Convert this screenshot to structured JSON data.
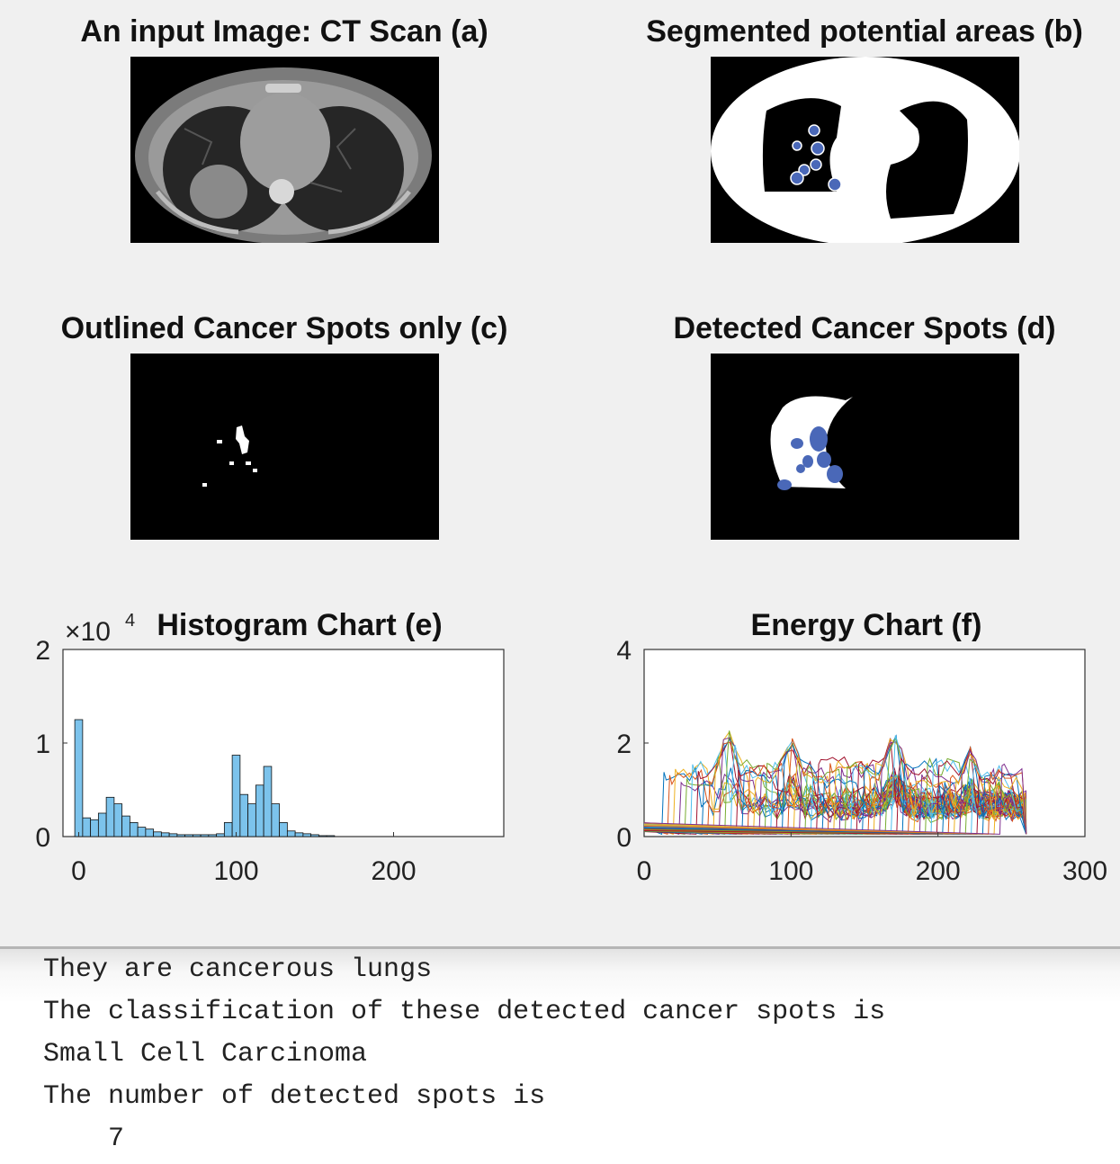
{
  "panels": {
    "a": {
      "title": "An input Image: CT Scan (a)"
    },
    "b": {
      "title": "Segmented potential areas (b)"
    },
    "c": {
      "title": "Outlined Cancer Spots only (c)"
    },
    "d": {
      "title": "Detected Cancer Spots (d)"
    }
  },
  "chart_data": [
    {
      "type": "bar",
      "title": "Histogram Chart (e)",
      "y_scale_label": "×10",
      "y_scale_exponent": "4",
      "xlim": [
        -10,
        270
      ],
      "ylim": [
        0,
        2
      ],
      "xticks": [
        "0",
        "100",
        "200"
      ],
      "yticks": [
        "0",
        "1",
        "2"
      ],
      "bin_width": 5,
      "x": [
        0,
        5,
        10,
        15,
        20,
        25,
        30,
        35,
        40,
        45,
        50,
        55,
        60,
        65,
        70,
        75,
        80,
        85,
        90,
        95,
        100,
        105,
        110,
        115,
        120,
        125,
        130,
        135,
        140,
        145,
        150,
        155,
        160
      ],
      "values": [
        1.25,
        0.2,
        0.18,
        0.25,
        0.42,
        0.35,
        0.22,
        0.15,
        0.1,
        0.08,
        0.05,
        0.04,
        0.03,
        0.02,
        0.02,
        0.02,
        0.02,
        0.02,
        0.03,
        0.15,
        0.87,
        0.45,
        0.35,
        0.55,
        0.75,
        0.35,
        0.15,
        0.06,
        0.04,
        0.03,
        0.02,
        0.01,
        0.01
      ],
      "color": "#7cc3ec"
    },
    {
      "type": "line",
      "title": "Energy Chart (f)",
      "xlim": [
        0,
        300
      ],
      "ylim": [
        0,
        4
      ],
      "xticks": [
        "0",
        "100",
        "200",
        "300"
      ],
      "yticks": [
        "0",
        "2",
        "4"
      ],
      "x_extent": [
        0,
        260
      ],
      "peaks": [
        {
          "x": 57,
          "y": 2.35
        },
        {
          "x": 100,
          "y": 2.2
        },
        {
          "x": 170,
          "y": 2.3
        },
        {
          "x": 222,
          "y": 1.95
        }
      ],
      "baseline": 1.5
    }
  ],
  "console": {
    "line1": "They are cancerous lungs",
    "line2": "The classification of these detected cancer spots is",
    "line3": "Small Cell Carcinoma",
    "line4": "The number of detected spots is",
    "line5": "    7"
  },
  "colors": {
    "marker": "#4a68b8",
    "hist_bar": "#7cc3ec"
  }
}
